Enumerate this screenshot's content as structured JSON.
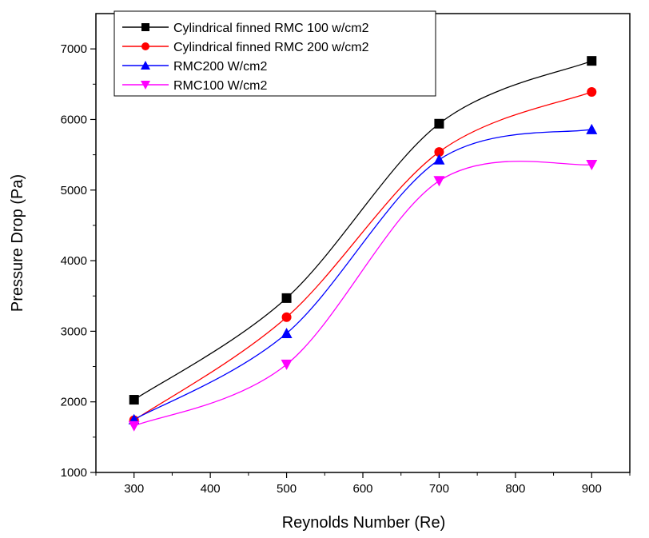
{
  "chart_data": {
    "type": "line",
    "title": "",
    "xlabel": "Reynolds Number (Re)",
    "ylabel": "Pressure Drop (Pa)",
    "xlim": [
      250,
      950
    ],
    "ylim": [
      1000,
      7500
    ],
    "xticks": [
      300,
      400,
      500,
      600,
      700,
      800,
      900
    ],
    "yticks": [
      1000,
      2000,
      3000,
      4000,
      5000,
      6000,
      7000
    ],
    "grid": false,
    "legend_position": "top-left",
    "x": [
      300,
      500,
      700,
      900
    ],
    "series": [
      {
        "name": "Cylindrical finned RMC 100 w/cm2",
        "marker": "square",
        "color": "#000000",
        "values": [
          2030,
          3470,
          5940,
          6830
        ]
      },
      {
        "name": "Cylindrical finned RMC 200 w/cm2",
        "marker": "circle",
        "color": "#ff0000",
        "values": [
          1740,
          3200,
          5540,
          6390
        ]
      },
      {
        "name": "RMC200 W/cm2",
        "marker": "triangle-up",
        "color": "#0000ff",
        "values": [
          1750,
          2970,
          5430,
          5860
        ]
      },
      {
        "name": "RMC100 W/cm2",
        "marker": "triangle-down",
        "color": "#ff00ff",
        "values": [
          1660,
          2530,
          5130,
          5360
        ]
      }
    ]
  }
}
